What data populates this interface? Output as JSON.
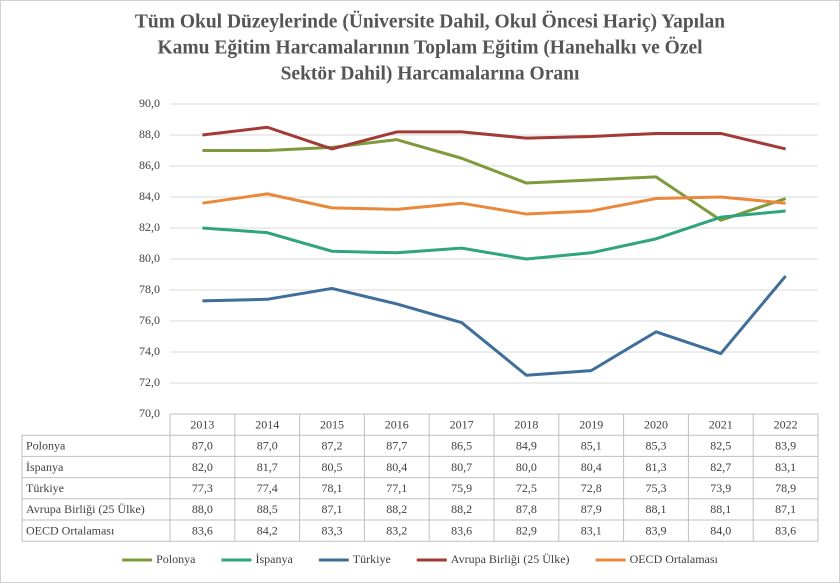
{
  "chart_data": {
    "type": "line",
    "title": [
      "Tüm Okul Düzeylerinde (Üniversite Dahil, Okul Öncesi Hariç) Yapılan",
      "Kamu Eğitim Harcamalarının Toplam Eğitim (Hanehalkı ve Özel",
      "Sektör Dahil) Harcamalarına Oranı"
    ],
    "categories": [
      "2013",
      "2014",
      "2015",
      "2016",
      "2017",
      "2018",
      "2019",
      "2020",
      "2021",
      "2022"
    ],
    "ylim": [
      70,
      90
    ],
    "yticks": [
      {
        "value": 70,
        "label": "70,0"
      },
      {
        "value": 72,
        "label": "72,0"
      },
      {
        "value": 74,
        "label": "74,0"
      },
      {
        "value": 76,
        "label": "76,0"
      },
      {
        "value": 78,
        "label": "78,0"
      },
      {
        "value": 80,
        "label": "80,0"
      },
      {
        "value": 82,
        "label": "82,0"
      },
      {
        "value": 84,
        "label": "84,0"
      },
      {
        "value": 86,
        "label": "86,0"
      },
      {
        "value": 88,
        "label": "88,0"
      },
      {
        "value": 90,
        "label": "90,0"
      }
    ],
    "grid": true,
    "legend": "bottom",
    "series": [
      {
        "name": "Polonya",
        "color": "#7f9a3c",
        "values": [
          87.0,
          87.0,
          87.2,
          87.7,
          86.5,
          84.9,
          85.1,
          85.3,
          82.5,
          83.9
        ],
        "value_labels": [
          "87,0",
          "87,0",
          "87,2",
          "87,7",
          "86,5",
          "84,9",
          "85,1",
          "85,3",
          "82,5",
          "83,9"
        ]
      },
      {
        "name": "İspanya",
        "color": "#2fa47e",
        "values": [
          82.0,
          81.7,
          80.5,
          80.4,
          80.7,
          80.0,
          80.4,
          81.3,
          82.7,
          83.1
        ],
        "value_labels": [
          "82,0",
          "81,7",
          "80,5",
          "80,4",
          "80,7",
          "80,0",
          "80,4",
          "81,3",
          "82,7",
          "83,1"
        ]
      },
      {
        "name": "Türkiye",
        "color": "#3f6e9a",
        "values": [
          77.3,
          77.4,
          78.1,
          77.1,
          75.9,
          72.5,
          72.8,
          75.3,
          73.9,
          78.9
        ],
        "value_labels": [
          "77,3",
          "77,4",
          "78,1",
          "77,1",
          "75,9",
          "72,5",
          "72,8",
          "75,3",
          "73,9",
          "78,9"
        ]
      },
      {
        "name": "Avrupa Birliği (25 Ülke)",
        "color": "#a23b37",
        "values": [
          88.0,
          88.5,
          87.1,
          88.2,
          88.2,
          87.8,
          87.9,
          88.1,
          88.1,
          87.1
        ],
        "value_labels": [
          "88,0",
          "88,5",
          "87,1",
          "88,2",
          "88,2",
          "87,8",
          "87,9",
          "88,1",
          "88,1",
          "87,1"
        ]
      },
      {
        "name": "OECD Ortalaması",
        "color": "#e8893c",
        "values": [
          83.6,
          84.2,
          83.3,
          83.2,
          83.6,
          82.9,
          83.1,
          83.9,
          84.0,
          83.6
        ],
        "value_labels": [
          "83,6",
          "84,2",
          "83,3",
          "83,2",
          "83,6",
          "82,9",
          "83,1",
          "83,9",
          "84,0",
          "83,6"
        ]
      }
    ]
  }
}
